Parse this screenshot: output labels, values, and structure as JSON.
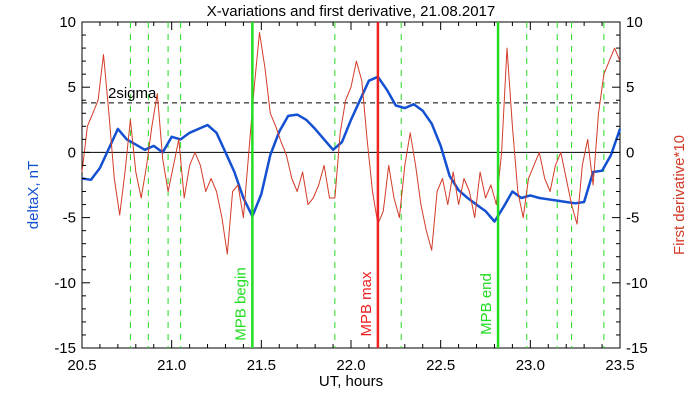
{
  "chart_data": {
    "type": "line",
    "title": "X-variations and first derivative, 21.08.2017",
    "xlabel": "UT, hours",
    "ylabel_left": "deltaX, nT",
    "ylabel_right": "First derivative*10",
    "xlim": [
      20.5,
      23.5
    ],
    "ylim": [
      -15,
      10
    ],
    "x_ticks": [
      "20.5",
      "21.0",
      "21.5",
      "22.0",
      "22.5",
      "23.0",
      "23.5"
    ],
    "y_ticks_left": [
      "-15",
      "-10",
      "-5",
      "0",
      "5",
      "10"
    ],
    "y_ticks_right": [
      "-15",
      "-10",
      "-5",
      "0",
      "5",
      "10"
    ],
    "colors": {
      "deltaX": "#1450d2",
      "derivative": "#d23c28",
      "mpb_edges": "#22dd22",
      "mpb_max": "#ee2222",
      "dashed_green": "#22dd22"
    },
    "sigma_line": {
      "label": "2sigma",
      "y": 3.8
    },
    "zero_line": 0,
    "markers": [
      {
        "label": "MPB begin",
        "x": 21.45,
        "color": "#22dd22"
      },
      {
        "label": "MPB max",
        "x": 22.15,
        "color": "#ee2222"
      },
      {
        "label": "MPB end",
        "x": 22.82,
        "color": "#22dd22"
      }
    ],
    "dashed_lines_x": [
      20.77,
      20.87,
      20.98,
      21.05,
      21.91,
      22.28,
      22.98,
      23.15,
      23.23,
      23.41
    ],
    "series": [
      {
        "key": "deltaX",
        "x": [
          20.5,
          20.55,
          20.6,
          20.65,
          20.7,
          20.75,
          20.8,
          20.85,
          20.9,
          20.95,
          21.0,
          21.05,
          21.1,
          21.15,
          21.2,
          21.25,
          21.3,
          21.35,
          21.4,
          21.45,
          21.5,
          21.55,
          21.6,
          21.65,
          21.7,
          21.75,
          21.8,
          21.85,
          21.9,
          21.95,
          22.0,
          22.05,
          22.1,
          22.15,
          22.2,
          22.25,
          22.3,
          22.35,
          22.4,
          22.45,
          22.5,
          22.55,
          22.6,
          22.65,
          22.7,
          22.75,
          22.8,
          22.85,
          22.9,
          22.95,
          23.0,
          23.05,
          23.1,
          23.15,
          23.2,
          23.25,
          23.3,
          23.35,
          23.4,
          23.45,
          23.5
        ],
        "y": [
          -2.0,
          -2.1,
          -1.2,
          0.3,
          1.8,
          1.0,
          0.6,
          0.2,
          0.5,
          0.0,
          1.2,
          1.0,
          1.5,
          1.8,
          2.1,
          1.5,
          0.0,
          -1.5,
          -3.5,
          -4.9,
          -3.2,
          -0.2,
          1.6,
          2.8,
          2.9,
          2.5,
          1.8,
          1.0,
          0.2,
          0.8,
          2.5,
          4.0,
          5.5,
          5.8,
          4.8,
          3.6,
          3.4,
          3.7,
          3.2,
          2.2,
          0.5,
          -1.8,
          -2.9,
          -3.5,
          -4.0,
          -4.5,
          -5.3,
          -4.2,
          -3.0,
          -3.5,
          -3.3,
          -3.5,
          -3.6,
          -3.7,
          -3.8,
          -3.9,
          -3.8,
          -1.5,
          -1.4,
          -0.2,
          1.8
        ]
      },
      {
        "key": "derivative",
        "x": [
          20.5,
          20.53,
          20.56,
          20.59,
          20.62,
          20.65,
          20.68,
          20.71,
          20.74,
          20.77,
          20.8,
          20.83,
          20.86,
          20.89,
          20.92,
          20.95,
          20.98,
          21.01,
          21.04,
          21.07,
          21.1,
          21.13,
          21.16,
          21.19,
          21.22,
          21.25,
          21.28,
          21.31,
          21.34,
          21.37,
          21.4,
          21.43,
          21.46,
          21.49,
          21.52,
          21.55,
          21.58,
          21.61,
          21.64,
          21.67,
          21.7,
          21.73,
          21.76,
          21.79,
          21.82,
          21.85,
          21.88,
          21.91,
          21.94,
          21.97,
          22.0,
          22.03,
          22.06,
          22.09,
          22.12,
          22.15,
          22.18,
          22.21,
          22.24,
          22.27,
          22.3,
          22.33,
          22.36,
          22.39,
          22.42,
          22.45,
          22.48,
          22.51,
          22.54,
          22.57,
          22.6,
          22.63,
          22.66,
          22.69,
          22.72,
          22.75,
          22.78,
          22.81,
          22.84,
          22.87,
          22.9,
          22.93,
          22.96,
          22.99,
          23.02,
          23.05,
          23.08,
          23.11,
          23.14,
          23.17,
          23.2,
          23.23,
          23.26,
          23.29,
          23.32,
          23.35,
          23.38,
          23.41,
          23.44,
          23.47,
          23.5
        ],
        "y": [
          -1.5,
          2.0,
          3.0,
          4.0,
          7.5,
          3.0,
          -2.0,
          -4.8,
          -1.5,
          2.5,
          -1.5,
          -3.5,
          -1.0,
          2.0,
          4.5,
          -0.5,
          -3.0,
          -1.0,
          1.0,
          -3.5,
          -1.0,
          0.0,
          -1.0,
          -3.0,
          -2.0,
          -3.0,
          -5.0,
          -7.8,
          -3.0,
          -2.5,
          -5.0,
          0.0,
          5.0,
          9.2,
          6.5,
          3.0,
          2.0,
          0.8,
          -0.2,
          -2.0,
          -3.0,
          -1.5,
          -4.0,
          -3.5,
          -2.5,
          -1.0,
          -3.5,
          -3.5,
          1.5,
          4.0,
          5.0,
          7.0,
          5.5,
          1.0,
          -3.0,
          -5.5,
          -4.5,
          -1.0,
          -3.5,
          -5.0,
          -1.0,
          1.5,
          -1.0,
          -4.0,
          -6.0,
          -7.5,
          -3.0,
          -2.0,
          -4.0,
          -1.5,
          -4.0,
          -2.0,
          -3.0,
          -5.0,
          -1.5,
          -3.5,
          -2.5,
          -4.0,
          0.0,
          8.0,
          2.0,
          -3.0,
          -5.0,
          -2.0,
          -1.0,
          0.0,
          -2.0,
          -3.0,
          -1.0,
          0.0,
          -2.0,
          -4.0,
          -5.5,
          -1.0,
          1.0,
          -2.5,
          3.0,
          6.0,
          7.0,
          8.0,
          7.0
        ]
      }
    ]
  }
}
